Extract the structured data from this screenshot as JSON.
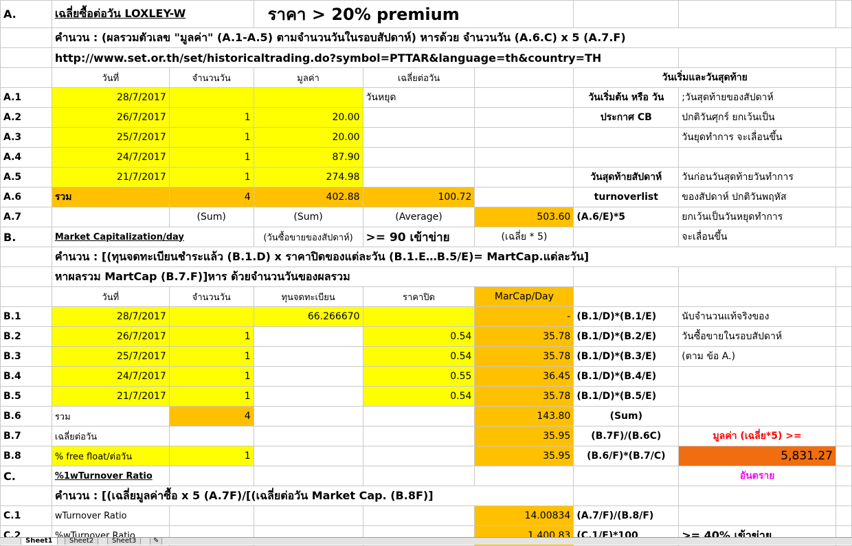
{
  "rows": {
    "r1": {
      "a": "A.",
      "title": "เฉลี่ยซื้อต่อวัน LOXLEY-W",
      "headline": "ราคา > 20% premium"
    },
    "r2": {
      "text": "คำนวน : (ผลรวมตัวเลข \"มูลค่า\" (A.1-A.5) ตามจำนวนวันในรอบสัปดาห์) หารด้วย จำนวนวัน (A.6.C) x 5 (A.7.F)"
    },
    "r3": {
      "text": "http://www.set.or.th/set/historicaltrading.do?symbol=PTTAR&language=th&country=TH"
    },
    "r4": {
      "b": "วันที่",
      "c": "จำนวนวัน",
      "d": "มูลค่า",
      "e": "เฉลี่ยต่อวัน",
      "g": "วันเริ่มและวันสุดท้าย"
    },
    "r5": {
      "a": "A.1",
      "b": "28/7/2017",
      "e": "วันหยุด",
      "g": "วันเริ่มต้น หรือ วัน",
      "h": ";วันสุดท้ายของสัปดาห์"
    },
    "r6": {
      "a": "A.2",
      "b": "26/7/2017",
      "c": "1",
      "d": "20.00",
      "g": "ประกาศ CB",
      "h": "ปกติวันศุกร์ ยกเว้นเป็น"
    },
    "r7": {
      "a": "A.3",
      "b": "25/7/2017",
      "c": "1",
      "d": "20.00",
      "h": "วันยุดทำการ จะเลื่อนขึ้น"
    },
    "r8": {
      "a": "A.4",
      "b": "24/7/2017",
      "c": "1",
      "d": "87.90"
    },
    "r9": {
      "a": "A.5",
      "b": "21/7/2017",
      "c": "1",
      "d": "274.98",
      "g": "วันสุดท้ายสัปดาห์",
      "h": "วันก่อนวันสุดท้ายวันทำการ"
    },
    "r10": {
      "a": "A.6",
      "b": "รวม",
      "c": "4",
      "d": "402.88",
      "e": "100.72",
      "g": "turnoverlist",
      "h": "ของสัปดาห์ ปกติวันพฤหัส"
    },
    "r11": {
      "a": "A.7",
      "c": "(Sum)",
      "d": "(Sum)",
      "e": "(Average)",
      "f": "503.60",
      "g": "(A.6/E)*5",
      "h": "ยกเว้นเป็นวันหยุดทำการ"
    },
    "r12": {
      "a": "B.",
      "b": "Market Capitalization/day",
      "d": "(วันซื้อขายของสัปดาห์)",
      "e": ">= 90 เข้าข่าย",
      "f": "(เฉลี่ย * 5)",
      "h": "จะเลื่อนขึ้น"
    },
    "r13": {
      "text": "คำนวน :  [(ทุนจดทะเบียนชำระแล้ว (B.1.D) x ราคาปิดของแต่ละวัน (B.1.E…B.5/E)= MartCap.แต่ละวัน]"
    },
    "r14": {
      "text": "หาผลรวม MartCap (B.7.F)]หาร ด้วยจำนวนวันของผลรวม"
    },
    "r15": {
      "b": "วันที่",
      "c": "จำนวนวัน",
      "d": "ทุนจดทะเบียน",
      "e": "ราคาปิด",
      "f": "MarCap/Day"
    },
    "r16": {
      "a": "B.1",
      "b": "28/7/2017",
      "d": "66.266670",
      "f": "-",
      "g": "(B.1/D)*(B.1/E)",
      "h": "นับจำนวนแท้จริงของ"
    },
    "r17": {
      "a": "B.2",
      "b": "26/7/2017",
      "c": "1",
      "e": "0.54",
      "f": "35.78",
      "g": "(B.1/D)*(B.2/E)",
      "h": "วันซื้อขายในรอบสัปดาห์"
    },
    "r18": {
      "a": "B.3",
      "b": "25/7/2017",
      "c": "1",
      "e": "0.54",
      "f": "35.78",
      "g": "(B.1/D)*(B.3/E)",
      "h": "(ตาม ข้อ A.)"
    },
    "r19": {
      "a": "B.4",
      "b": "24/7/2017",
      "c": "1",
      "e": "0.55",
      "f": "36.45",
      "g": "(B.1/D)*(B.4/E)"
    },
    "r20": {
      "a": "B.5",
      "b": "21/7/2017",
      "c": "1",
      "e": "0.54",
      "f": "35.78",
      "g": "(B.1/D)*(B.5/E)"
    },
    "r21": {
      "a": "B.6",
      "b": "รวม",
      "c": "4",
      "f": "143.80",
      "g": "(Sum)"
    },
    "r22": {
      "a": "B.7",
      "b": "เฉลี่ยต่อวัน",
      "f": "35.95",
      "g": "(B.7F)/(B.6C)",
      "h": "มูลค่า (เฉลี่ย*5) >="
    },
    "r23": {
      "a": "B.8",
      "b": "% free float/ต่อวัน",
      "c": "1",
      "f": "35.95",
      "g": "(B.6/F)*(B.7/C)",
      "h": "5,831.27"
    },
    "r24": {
      "a": "C.",
      "b": "%1wTurnover Ratio",
      "h": "อันตราย"
    },
    "r25": {
      "text": "คำนวน :  [(เฉลี่ยมูลค่าซื้อ x 5  (A.7F)/[(เฉลี่ยต่อวัน Market Cap. (B.8F)]"
    },
    "r26": {
      "a": "C.1",
      "b": "wTurnover Ratio",
      "f": "14.00834",
      "g": "(A.7/F)/(B.8/F)"
    },
    "r27": {
      "a": "C.2",
      "b": " %wTurnover Ratio",
      "f": "1,400.83",
      "g": "(C.1/F)*100",
      "h": ">= 40% เข้าข่าย"
    }
  },
  "tabs": [
    "Sheet1",
    "Sheet2",
    "Sheet3"
  ],
  "colors": {
    "yellow": "#ffff00",
    "orange": "#ffc000",
    "dark_orange": "#f06d10",
    "red_text": "#ff0000",
    "magenta_text": "#ff00ff"
  }
}
